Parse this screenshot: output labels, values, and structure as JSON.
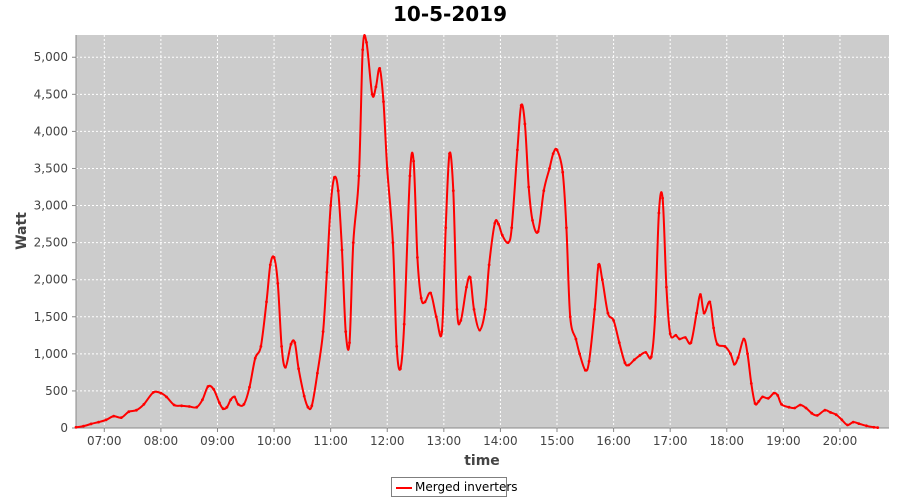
{
  "chart_data": {
    "type": "line",
    "title": "10-5-2019",
    "xlabel": "time",
    "ylabel": "Watt",
    "x_ticks": [
      "07:00",
      "08:00",
      "09:00",
      "10:00",
      "11:00",
      "12:00",
      "13:00",
      "14:00",
      "15:00",
      "16:00",
      "17:00",
      "18:00",
      "19:00",
      "20:00"
    ],
    "xlim": [
      "06:30",
      "20:52"
    ],
    "y_ticks": [
      "0",
      "500",
      "1,000",
      "1,500",
      "2,000",
      "2,500",
      "3,000",
      "3,500",
      "4,000",
      "4,500",
      "5,000"
    ],
    "ylim": [
      0,
      5300
    ],
    "grid": true,
    "legend_position": "bottom-center",
    "background_color": "#cccccc",
    "grid_color": "#ffffff",
    "series": [
      {
        "name": "Merged inverters",
        "color": "#ff0000",
        "points": [
          [
            "06:30",
            10
          ],
          [
            "06:38",
            25
          ],
          [
            "06:46",
            55
          ],
          [
            "06:54",
            80
          ],
          [
            "07:02",
            110
          ],
          [
            "07:10",
            160
          ],
          [
            "07:18",
            140
          ],
          [
            "07:26",
            220
          ],
          [
            "07:34",
            240
          ],
          [
            "07:42",
            320
          ],
          [
            "07:52",
            480
          ],
          [
            "08:00",
            470
          ],
          [
            "08:06",
            420
          ],
          [
            "08:14",
            310
          ],
          [
            "08:22",
            300
          ],
          [
            "08:30",
            290
          ],
          [
            "08:38",
            280
          ],
          [
            "08:44",
            380
          ],
          [
            "08:50",
            560
          ],
          [
            "08:56",
            520
          ],
          [
            "09:02",
            340
          ],
          [
            "09:06",
            260
          ],
          [
            "09:10",
            280
          ],
          [
            "09:14",
            380
          ],
          [
            "09:18",
            420
          ],
          [
            "09:22",
            320
          ],
          [
            "09:28",
            320
          ],
          [
            "09:34",
            550
          ],
          [
            "09:40",
            940
          ],
          [
            "09:46",
            1100
          ],
          [
            "09:52",
            1700
          ],
          [
            "09:56",
            2200
          ],
          [
            "10:00",
            2300
          ],
          [
            "10:04",
            1950
          ],
          [
            "10:08",
            1100
          ],
          [
            "10:12",
            820
          ],
          [
            "10:18",
            1130
          ],
          [
            "10:22",
            1150
          ],
          [
            "10:26",
            800
          ],
          [
            "10:32",
            430
          ],
          [
            "10:36",
            280
          ],
          [
            "10:40",
            300
          ],
          [
            "10:46",
            740
          ],
          [
            "10:52",
            1300
          ],
          [
            "10:56",
            2100
          ],
          [
            "11:00",
            3000
          ],
          [
            "11:04",
            3380
          ],
          [
            "11:08",
            3200
          ],
          [
            "11:12",
            2400
          ],
          [
            "11:16",
            1300
          ],
          [
            "11:20",
            1150
          ],
          [
            "11:24",
            2500
          ],
          [
            "11:30",
            3400
          ],
          [
            "11:34",
            5100
          ],
          [
            "11:38",
            5200
          ],
          [
            "11:44",
            4500
          ],
          [
            "11:48",
            4600
          ],
          [
            "11:52",
            4850
          ],
          [
            "11:56",
            4400
          ],
          [
            "12:00",
            3500
          ],
          [
            "12:06",
            2500
          ],
          [
            "12:10",
            1100
          ],
          [
            "12:14",
            800
          ],
          [
            "12:18",
            1400
          ],
          [
            "12:24",
            3400
          ],
          [
            "12:28",
            3600
          ],
          [
            "12:32",
            2300
          ],
          [
            "12:36",
            1750
          ],
          [
            "12:40",
            1700
          ],
          [
            "12:46",
            1820
          ],
          [
            "12:52",
            1500
          ],
          [
            "12:58",
            1300
          ],
          [
            "13:02",
            2700
          ],
          [
            "13:06",
            3700
          ],
          [
            "13:10",
            3200
          ],
          [
            "13:14",
            1600
          ],
          [
            "13:18",
            1450
          ],
          [
            "13:24",
            1900
          ],
          [
            "13:28",
            2030
          ],
          [
            "13:32",
            1600
          ],
          [
            "13:38",
            1320
          ],
          [
            "13:44",
            1600
          ],
          [
            "13:48",
            2200
          ],
          [
            "13:54",
            2760
          ],
          [
            "13:58",
            2750
          ],
          [
            "14:02",
            2600
          ],
          [
            "14:08",
            2500
          ],
          [
            "14:12",
            2700
          ],
          [
            "14:18",
            3750
          ],
          [
            "14:22",
            4350
          ],
          [
            "14:26",
            4100
          ],
          [
            "14:30",
            3250
          ],
          [
            "14:34",
            2800
          ],
          [
            "14:40",
            2650
          ],
          [
            "14:46",
            3200
          ],
          [
            "14:52",
            3500
          ],
          [
            "14:56",
            3700
          ],
          [
            "15:00",
            3750
          ],
          [
            "15:06",
            3450
          ],
          [
            "15:10",
            2700
          ],
          [
            "15:14",
            1500
          ],
          [
            "15:20",
            1200
          ],
          [
            "15:24",
            1000
          ],
          [
            "15:30",
            780
          ],
          [
            "15:34",
            900
          ],
          [
            "15:40",
            1600
          ],
          [
            "15:44",
            2200
          ],
          [
            "15:48",
            2000
          ],
          [
            "15:54",
            1550
          ],
          [
            "16:00",
            1450
          ],
          [
            "16:06",
            1150
          ],
          [
            "16:12",
            880
          ],
          [
            "16:16",
            850
          ],
          [
            "16:22",
            920
          ],
          [
            "16:28",
            980
          ],
          [
            "16:34",
            1020
          ],
          [
            "16:40",
            960
          ],
          [
            "16:44",
            1500
          ],
          [
            "16:48",
            2900
          ],
          [
            "16:52",
            3100
          ],
          [
            "16:56",
            1900
          ],
          [
            "17:00",
            1270
          ],
          [
            "17:06",
            1250
          ],
          [
            "17:10",
            1200
          ],
          [
            "17:16",
            1220
          ],
          [
            "17:22",
            1150
          ],
          [
            "17:28",
            1550
          ],
          [
            "17:32",
            1800
          ],
          [
            "17:36",
            1550
          ],
          [
            "17:42",
            1700
          ],
          [
            "17:46",
            1350
          ],
          [
            "17:50",
            1130
          ],
          [
            "17:58",
            1100
          ],
          [
            "18:04",
            1000
          ],
          [
            "18:08",
            860
          ],
          [
            "18:12",
            950
          ],
          [
            "18:18",
            1200
          ],
          [
            "18:22",
            1000
          ],
          [
            "18:26",
            600
          ],
          [
            "18:30",
            330
          ],
          [
            "18:34",
            360
          ],
          [
            "18:38",
            420
          ],
          [
            "18:44",
            400
          ],
          [
            "18:50",
            470
          ],
          [
            "18:54",
            440
          ],
          [
            "18:58",
            320
          ],
          [
            "19:06",
            280
          ],
          [
            "19:12",
            270
          ],
          [
            "19:18",
            310
          ],
          [
            "19:24",
            270
          ],
          [
            "19:30",
            200
          ],
          [
            "19:36",
            170
          ],
          [
            "19:44",
            240
          ],
          [
            "19:50",
            210
          ],
          [
            "19:56",
            180
          ],
          [
            "20:02",
            110
          ],
          [
            "20:08",
            40
          ],
          [
            "20:14",
            80
          ],
          [
            "20:20",
            60
          ],
          [
            "20:28",
            30
          ],
          [
            "20:36",
            10
          ],
          [
            "20:40",
            5
          ]
        ]
      }
    ]
  }
}
